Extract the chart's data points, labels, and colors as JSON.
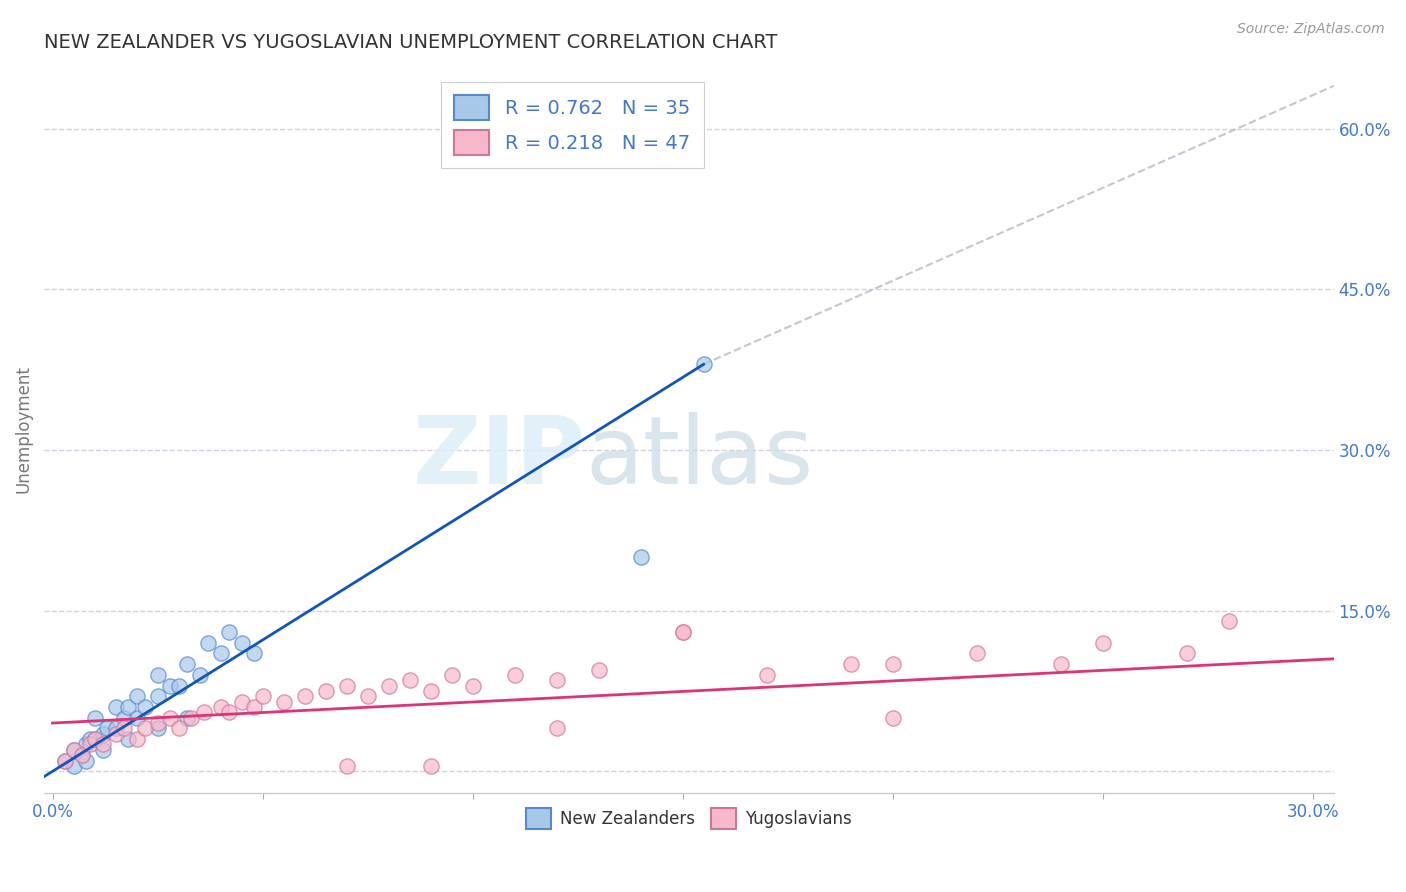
{
  "title": "NEW ZEALANDER VS YUGOSLAVIAN UNEMPLOYMENT CORRELATION CHART",
  "source": "Source: ZipAtlas.com",
  "ylabel": "Unemployment",
  "xlim": [
    -0.002,
    0.305
  ],
  "ylim": [
    -0.02,
    0.66
  ],
  "xticks": [
    0.0,
    0.05,
    0.1,
    0.15,
    0.2,
    0.25,
    0.3
  ],
  "xticklabels": [
    "0.0%",
    "",
    "",
    "",
    "",
    "",
    "30.0%"
  ],
  "yticks": [
    0.0,
    0.15,
    0.3,
    0.45,
    0.6
  ],
  "yticklabels": [
    "",
    "15.0%",
    "30.0%",
    "45.0%",
    "60.0%"
  ],
  "legend_R1": "R = 0.762",
  "legend_N1": "N = 35",
  "legend_R2": "R = 0.218",
  "legend_N2": "N = 47",
  "blue_color": "#a8c8e8",
  "blue_edge_color": "#5588cc",
  "pink_color": "#f8b8cc",
  "pink_edge_color": "#cc7799",
  "blue_line_color": "#1155bb",
  "pink_line_color": "#dd3377",
  "grid_color": "#ccccdd",
  "bg_color": "#ffffff",
  "title_color": "#333333",
  "axis_label_color": "#777777",
  "tick_color": "#4477cc",
  "legend_text_color": "#4477cc",
  "blue_scatter_x": [
    0.003,
    0.005,
    0.007,
    0.008,
    0.009,
    0.01,
    0.01,
    0.012,
    0.013,
    0.015,
    0.015,
    0.017,
    0.018,
    0.02,
    0.02,
    0.022,
    0.025,
    0.025,
    0.028,
    0.03,
    0.032,
    0.035,
    0.037,
    0.04,
    0.042,
    0.045,
    0.048,
    0.005,
    0.008,
    0.012,
    0.018,
    0.025,
    0.032,
    0.14,
    0.155
  ],
  "blue_scatter_y": [
    0.01,
    0.02,
    0.015,
    0.025,
    0.03,
    0.03,
    0.05,
    0.035,
    0.04,
    0.04,
    0.06,
    0.05,
    0.06,
    0.05,
    0.07,
    0.06,
    0.07,
    0.09,
    0.08,
    0.08,
    0.1,
    0.09,
    0.12,
    0.11,
    0.13,
    0.12,
    0.11,
    0.005,
    0.01,
    0.02,
    0.03,
    0.04,
    0.05,
    0.2,
    0.38
  ],
  "pink_scatter_x": [
    0.003,
    0.005,
    0.007,
    0.009,
    0.01,
    0.012,
    0.015,
    0.017,
    0.02,
    0.022,
    0.025,
    0.028,
    0.03,
    0.033,
    0.036,
    0.04,
    0.042,
    0.045,
    0.048,
    0.05,
    0.055,
    0.06,
    0.065,
    0.07,
    0.075,
    0.08,
    0.085,
    0.09,
    0.095,
    0.1,
    0.11,
    0.12,
    0.13,
    0.15,
    0.17,
    0.19,
    0.2,
    0.22,
    0.24,
    0.25,
    0.27,
    0.28,
    0.15,
    0.2,
    0.07,
    0.09,
    0.12
  ],
  "pink_scatter_y": [
    0.01,
    0.02,
    0.015,
    0.025,
    0.03,
    0.025,
    0.035,
    0.04,
    0.03,
    0.04,
    0.045,
    0.05,
    0.04,
    0.05,
    0.055,
    0.06,
    0.055,
    0.065,
    0.06,
    0.07,
    0.065,
    0.07,
    0.075,
    0.08,
    0.07,
    0.08,
    0.085,
    0.075,
    0.09,
    0.08,
    0.09,
    0.085,
    0.095,
    0.13,
    0.09,
    0.1,
    0.1,
    0.11,
    0.1,
    0.12,
    0.11,
    0.14,
    0.13,
    0.05,
    0.005,
    0.005,
    0.04
  ],
  "blue_line_x": [
    -0.002,
    0.155
  ],
  "blue_line_y": [
    -0.005,
    0.38
  ],
  "pink_line_x": [
    0.0,
    0.305
  ],
  "pink_line_y": [
    0.045,
    0.105
  ],
  "diag_line_x": [
    0.155,
    0.305
  ],
  "diag_line_y": [
    0.38,
    0.64
  ],
  "marker_size": 120
}
